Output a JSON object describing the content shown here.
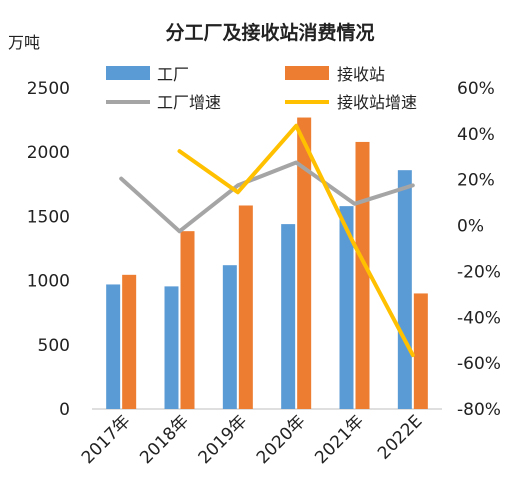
{
  "chart_data": {
    "type": "bar",
    "title": "分工厂及接收站消费情况",
    "left_axis_unit": "万吨",
    "categories": [
      "2017年",
      "2018年",
      "2019年",
      "2020年",
      "2021年",
      "2022E"
    ],
    "ylim_left": [
      0,
      2500
    ],
    "yticks_left": [
      "0",
      "500",
      "1000",
      "1500",
      "2000",
      "2500"
    ],
    "ylim_right": [
      -80,
      60
    ],
    "yticks_right": [
      "-80%",
      "-60%",
      "-40%",
      "-20%",
      "0%",
      "20%",
      "40%",
      "60%"
    ],
    "series": [
      {
        "name": "工厂",
        "kind": "bar",
        "axis": "left",
        "color": "#5B9BD5",
        "values": [
          970,
          955,
          1120,
          1440,
          1580,
          1860
        ]
      },
      {
        "name": "接收站",
        "kind": "bar",
        "axis": "left",
        "color": "#ED7D31",
        "values": [
          1045,
          1385,
          1585,
          2270,
          2080,
          900
        ]
      },
      {
        "name": "工厂增速",
        "kind": "line",
        "axis": "right",
        "color": "#A5A5A5",
        "values": [
          20.5,
          -2.5,
          17.5,
          27.5,
          9.5,
          17.5
        ]
      },
      {
        "name": "接收站增速",
        "kind": "line",
        "axis": "right",
        "color": "#FFC000",
        "values": [
          null,
          32.5,
          14.5,
          43.5,
          -8.5,
          -56.5
        ]
      }
    ],
    "grid": false,
    "legend_position": "top"
  }
}
